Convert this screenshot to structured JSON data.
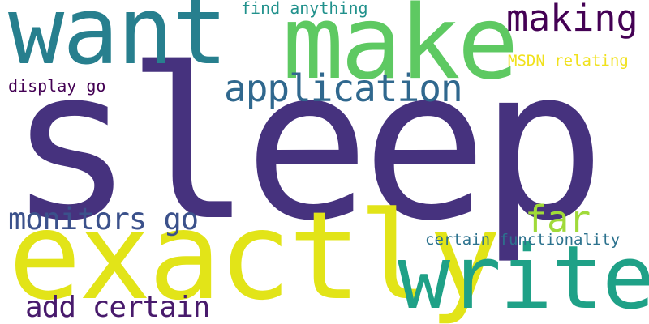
{
  "cloud": {
    "words": {
      "sleep": {
        "text": "sleep",
        "color": "#46327e"
      },
      "exactly": {
        "text": "exactly",
        "color": "#e2e418"
      },
      "want": {
        "text": "want",
        "color": "#277f8e"
      },
      "make": {
        "text": "make",
        "color": "#5ec962"
      },
      "write": {
        "text": "write",
        "color": "#1fa187"
      },
      "application": {
        "text": "application",
        "color": "#30688e"
      },
      "making": {
        "text": "making",
        "color": "#440154"
      },
      "far": {
        "text": "far",
        "color": "#a0da39"
      },
      "monitors_go": {
        "text": "monitors go",
        "color": "#3b518b"
      },
      "add_certain": {
        "text": "add certain",
        "color": "#481a6c"
      },
      "find_anything": {
        "text": "find anything",
        "color": "#21918c"
      },
      "msdn_relating": {
        "text": "MSDN relating",
        "color": "#f0e11c"
      },
      "display_go": {
        "text": "display go",
        "color": "#440154"
      },
      "certain_functionality": {
        "text": "certain functionality",
        "color": "#2c728e"
      }
    }
  }
}
